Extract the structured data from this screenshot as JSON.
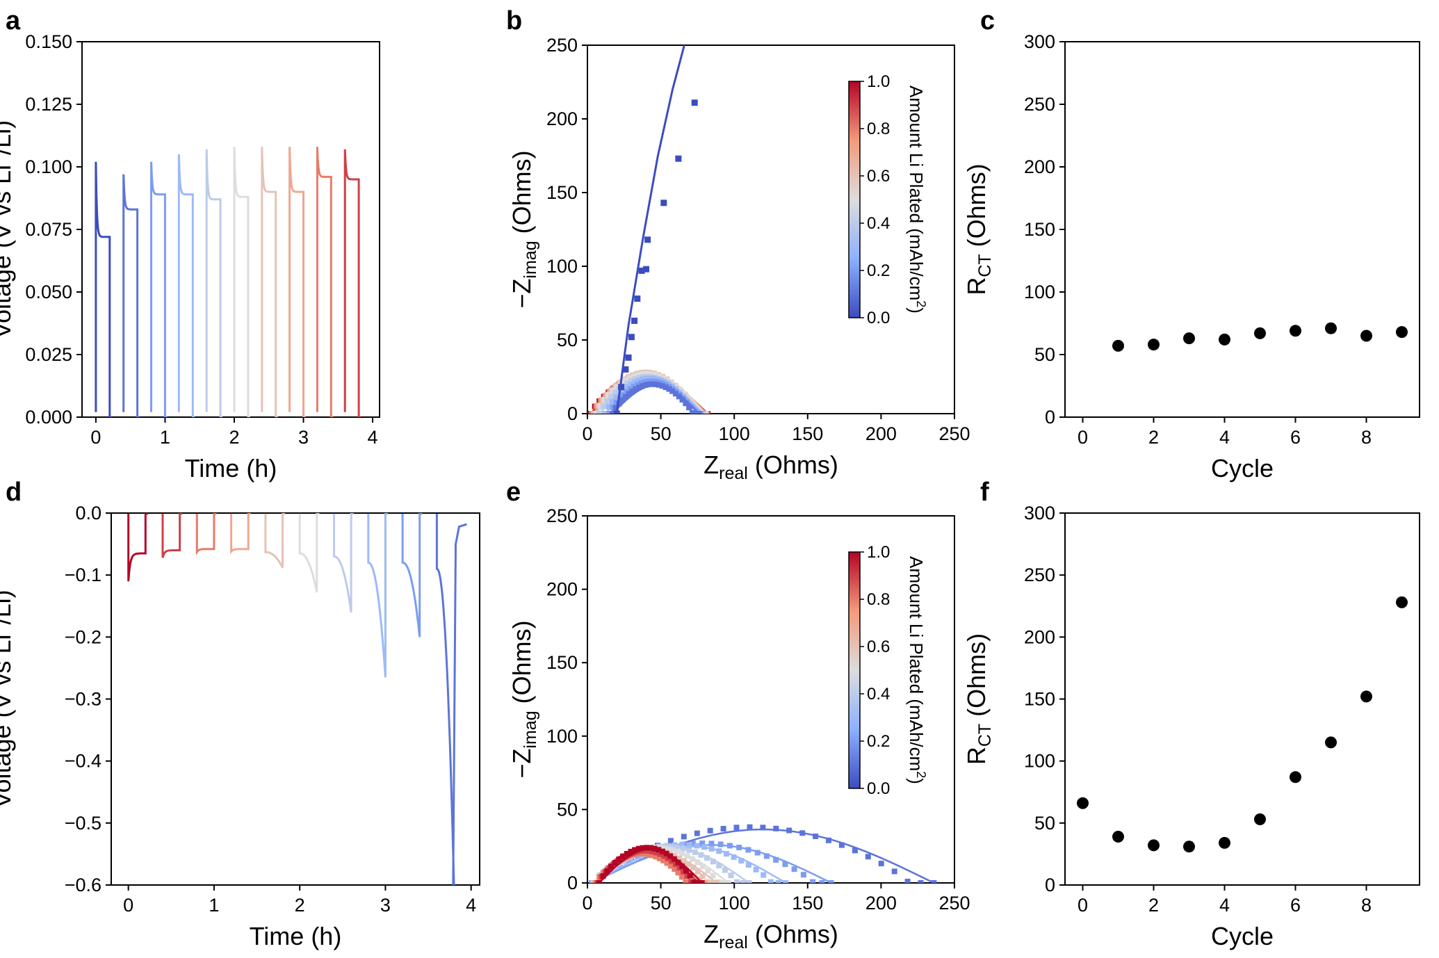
{
  "colors": {
    "start": "#3b4cc0",
    "mid": "#dddddd",
    "end": "#b40426",
    "marker": "#000000"
  },
  "colorbar": {
    "label_main": "Amount Li Plated (mAh/cm",
    "label_sup": "2",
    "label_end": ")",
    "ticks": [
      "0.0",
      "0.2",
      "0.4",
      "0.6",
      "0.8",
      "1.0"
    ],
    "range": [
      0,
      1
    ]
  },
  "chart_data": [
    {
      "panel": "a",
      "type": "line",
      "xlabel": "Time (h)",
      "ylabel_main": "Voltage (V vs Li",
      "ylabel_sup": "+",
      "ylabel_end": "/Li)",
      "xlim": [
        -0.2,
        4.1
      ],
      "ylim": [
        0,
        0.15
      ],
      "xticks": [
        "0",
        "1",
        "2",
        "3",
        "4"
      ],
      "xtick_values": [
        0,
        1,
        2,
        3,
        4
      ],
      "yticks": [
        "0.000",
        "0.025",
        "0.050",
        "0.075",
        "0.100",
        "0.125",
        "0.150"
      ],
      "ytick_values": [
        0,
        0.025,
        0.05,
        0.075,
        0.1,
        0.125,
        0.15
      ],
      "pulse_duration_h": 0.2,
      "pulses": [
        {
          "t_start": 0.0,
          "v_peak": 0.102,
          "v_end": 0.072,
          "amount": 0.0
        },
        {
          "t_start": 0.4,
          "v_peak": 0.097,
          "v_end": 0.083,
          "amount": 0.1
        },
        {
          "t_start": 0.8,
          "v_peak": 0.102,
          "v_end": 0.089,
          "amount": 0.2
        },
        {
          "t_start": 1.2,
          "v_peak": 0.105,
          "v_end": 0.089,
          "amount": 0.3
        },
        {
          "t_start": 1.6,
          "v_peak": 0.107,
          "v_end": 0.087,
          "amount": 0.4
        },
        {
          "t_start": 2.0,
          "v_peak": 0.108,
          "v_end": 0.088,
          "amount": 0.5
        },
        {
          "t_start": 2.4,
          "v_peak": 0.108,
          "v_end": 0.09,
          "amount": 0.6
        },
        {
          "t_start": 2.8,
          "v_peak": 0.108,
          "v_end": 0.09,
          "amount": 0.7
        },
        {
          "t_start": 3.2,
          "v_peak": 0.108,
          "v_end": 0.096,
          "amount": 0.8
        },
        {
          "t_start": 3.6,
          "v_peak": 0.107,
          "v_end": 0.095,
          "amount": 0.9
        }
      ]
    },
    {
      "panel": "b",
      "type": "scatter",
      "xlabel_main": "Z",
      "xlabel_sub": "real",
      "xlabel_end": " (Ohms)",
      "ylabel_main": "−Z",
      "ylabel_sub": "imag",
      "ylabel_end": " (Ohms)",
      "xlim": [
        0,
        250
      ],
      "ylim": [
        0,
        250
      ],
      "xticks": [
        "0",
        "50",
        "100",
        "150",
        "200",
        "250"
      ],
      "xtick_values": [
        0,
        50,
        100,
        150,
        200,
        250
      ],
      "yticks": [
        "0",
        "50",
        "100",
        "150",
        "200",
        "250"
      ],
      "ytick_values": [
        0,
        50,
        100,
        150,
        200,
        250
      ],
      "fit_first": {
        "x": [
          20,
          28,
          38,
          48,
          58,
          66
        ],
        "y": [
          0,
          60,
          120,
          175,
          220,
          250
        ],
        "amount": 0.0
      },
      "points_first": {
        "x": [
          20,
          23,
          26,
          28,
          30,
          32,
          34,
          37,
          40,
          41,
          52,
          62,
          73
        ],
        "y": [
          0,
          18,
          30,
          38,
          52,
          63,
          78,
          97,
          98,
          118,
          143,
          173,
          211
        ],
        "amount": 0.0
      },
      "arcs": [
        {
          "x0": 17,
          "x1": 76,
          "peak": 20,
          "amount": 0.1
        },
        {
          "x0": 15,
          "x1": 77,
          "peak": 22,
          "amount": 0.2
        },
        {
          "x0": 12,
          "x1": 78,
          "peak": 24,
          "amount": 0.3
        },
        {
          "x0": 8,
          "x1": 79,
          "peak": 25,
          "amount": 0.4
        },
        {
          "x0": 6,
          "x1": 80,
          "peak": 27,
          "amount": 0.5
        },
        {
          "x0": 5,
          "x1": 80,
          "peak": 28,
          "amount": 0.6
        },
        {
          "x0": 4,
          "x1": 81,
          "peak": 27,
          "amount": 0.7
        },
        {
          "x0": 3,
          "x1": 81,
          "peak": 26,
          "amount": 0.8
        },
        {
          "x0": 3,
          "x1": 82,
          "peak": 25,
          "amount": 0.9
        },
        {
          "x0": 2,
          "x1": 82,
          "peak": 25,
          "amount": 1.0
        }
      ]
    },
    {
      "panel": "c",
      "type": "scatter",
      "xlabel": "Cycle",
      "ylabel_main": "R",
      "ylabel_sub": "CT",
      "ylabel_end": " (Ohms)",
      "xlim": [
        -0.5,
        9.5
      ],
      "ylim": [
        0,
        300
      ],
      "xticks": [
        "0",
        "2",
        "4",
        "6",
        "8"
      ],
      "xtick_values": [
        0,
        2,
        4,
        6,
        8
      ],
      "yticks": [
        "0",
        "50",
        "100",
        "150",
        "200",
        "250",
        "300"
      ],
      "ytick_values": [
        0,
        50,
        100,
        150,
        200,
        250,
        300
      ],
      "x": [
        1,
        2,
        3,
        4,
        5,
        6,
        7,
        8,
        9
      ],
      "y": [
        57,
        58,
        63,
        62,
        67,
        69,
        71,
        65,
        68
      ]
    },
    {
      "panel": "d",
      "type": "line",
      "xlabel": "Time (h)",
      "ylabel_main": "Voltage (V vs Li",
      "ylabel_sup": "+",
      "ylabel_end": "/Li)",
      "xlim": [
        -0.2,
        4.1
      ],
      "ylim": [
        -0.6,
        0
      ],
      "xticks": [
        "0",
        "1",
        "2",
        "3",
        "4"
      ],
      "xtick_values": [
        0,
        1,
        2,
        3,
        4
      ],
      "yticks": [
        "−0.6",
        "−0.5",
        "−0.4",
        "−0.3",
        "−0.2",
        "−0.1",
        "0.0"
      ],
      "ytick_values": [
        -0.6,
        -0.5,
        -0.4,
        -0.3,
        -0.2,
        -0.1,
        0
      ],
      "pulse_duration_h": 0.2,
      "pulses": [
        {
          "t_start": 0.0,
          "v_min": -0.11,
          "v_end": -0.065,
          "amount": 1.0
        },
        {
          "t_start": 0.4,
          "v_min": -0.072,
          "v_end": -0.06,
          "amount": 0.9
        },
        {
          "t_start": 0.8,
          "v_min": -0.063,
          "v_end": -0.058,
          "amount": 0.8
        },
        {
          "t_start": 1.2,
          "v_min": -0.062,
          "v_end": -0.058,
          "amount": 0.7
        },
        {
          "t_start": 1.6,
          "v_min": -0.063,
          "v_end": -0.088,
          "amount": 0.6
        },
        {
          "t_start": 2.0,
          "v_min": -0.065,
          "v_end": -0.128,
          "amount": 0.5
        },
        {
          "t_start": 2.4,
          "v_min": -0.07,
          "v_end": -0.16,
          "amount": 0.4
        },
        {
          "t_start": 2.8,
          "v_min": -0.08,
          "v_end": -0.265,
          "amount": 0.3
        },
        {
          "t_start": 3.2,
          "v_min": -0.08,
          "v_end": -0.2,
          "amount": 0.2
        },
        {
          "t_start": 3.6,
          "v_min": -0.09,
          "v_end": -0.6,
          "amount": 0.1
        }
      ],
      "tail": {
        "t": [
          3.79,
          3.82,
          3.86,
          3.95
        ],
        "v": [
          -0.6,
          -0.05,
          -0.022,
          -0.018
        ],
        "amount": 0.1
      }
    },
    {
      "panel": "e",
      "type": "scatter",
      "xlabel_main": "Z",
      "xlabel_sub": "real",
      "xlabel_end": " (Ohms)",
      "ylabel_main": "−Z",
      "ylabel_sub": "imag",
      "ylabel_end": " (Ohms)",
      "xlim": [
        0,
        250
      ],
      "ylim": [
        0,
        250
      ],
      "xticks": [
        "0",
        "50",
        "100",
        "150",
        "200",
        "250"
      ],
      "xtick_values": [
        0,
        50,
        100,
        150,
        200,
        250
      ],
      "yticks": [
        "0",
        "50",
        "100",
        "150",
        "200",
        "250"
      ],
      "ytick_values": [
        0,
        50,
        100,
        150,
        200,
        250
      ],
      "arcs": [
        {
          "x0": 8,
          "x1": 78,
          "peak": 24,
          "amount": 1.0
        },
        {
          "x0": 7,
          "x1": 76,
          "peak": 22,
          "amount": 0.9
        },
        {
          "x0": 6,
          "x1": 72,
          "peak": 20,
          "amount": 0.8
        },
        {
          "x0": 5,
          "x1": 80,
          "peak": 21,
          "amount": 0.7
        },
        {
          "x0": 5,
          "x1": 88,
          "peak": 22,
          "amount": 0.6
        },
        {
          "x0": 5,
          "x1": 96,
          "peak": 24,
          "amount": 0.5
        },
        {
          "x0": 4,
          "x1": 110,
          "peak": 25,
          "amount": 0.4
        },
        {
          "x0": 4,
          "x1": 135,
          "peak": 26,
          "amount": 0.3
        },
        {
          "x0": 3,
          "x1": 166,
          "peak": 27,
          "amount": 0.2
        },
        {
          "x0": 3,
          "x1": 236,
          "peak": 38,
          "amount": 0.1
        }
      ]
    },
    {
      "panel": "f",
      "type": "scatter",
      "xlabel": "Cycle",
      "ylabel_main": "R",
      "ylabel_sub": "CT",
      "ylabel_end": " (Ohms)",
      "xlim": [
        -0.5,
        9.5
      ],
      "ylim": [
        0,
        300
      ],
      "xticks": [
        "0",
        "2",
        "4",
        "6",
        "8"
      ],
      "xtick_values": [
        0,
        2,
        4,
        6,
        8
      ],
      "yticks": [
        "0",
        "50",
        "100",
        "150",
        "200",
        "250",
        "300"
      ],
      "ytick_values": [
        0,
        50,
        100,
        150,
        200,
        250,
        300
      ],
      "x": [
        0,
        1,
        2,
        3,
        4,
        5,
        6,
        7,
        8,
        9
      ],
      "y": [
        66,
        39,
        32,
        31,
        34,
        53,
        87,
        115,
        152,
        228
      ]
    }
  ]
}
